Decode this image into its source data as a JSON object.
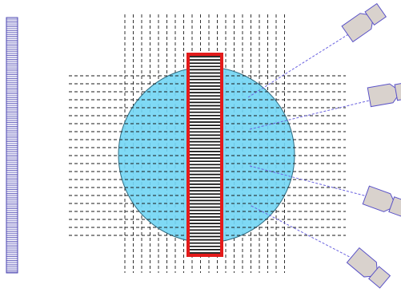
{
  "colors": {
    "background": "#ffffff",
    "circle_fill": "#74d6f4",
    "circle_stroke": "#2f6b80",
    "grid_line": "#1a1a1a",
    "sample_frame": "#e31b1b",
    "sample_stripes": "#111111",
    "sample_fill": "#ffffff",
    "detector_fill": "#d9d2cd",
    "detector_stroke": "#5a52c8",
    "beam_line": "#6b63e0",
    "grating_stroke": "#4a43b0"
  },
  "icons": {
    "grating": "vertical-grating-icon",
    "sample": "striped-sample-icon",
    "detector": "detector-camera-icon"
  }
}
